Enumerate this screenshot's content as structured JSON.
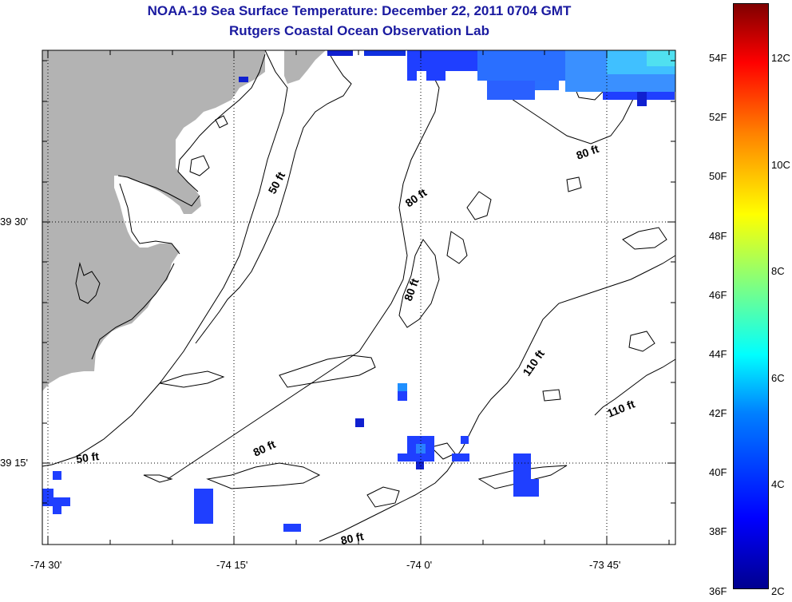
{
  "title": "NOAA-19 Sea Surface Temperature:  December 22, 2011 0704 GMT",
  "subtitle": "Rutgers Coastal Ocean Observation Lab",
  "colors": {
    "title": "#1a1aa0",
    "land": "#b3b3b3",
    "contour": "#000000",
    "sst_cold": "#1f3fff",
    "sst_cool": "#2aa0ff"
  },
  "x_ticks": [
    "-74 30'",
    "-74 15'",
    "-74 0'",
    "-73 45'"
  ],
  "y_ticks": [
    "39 30'",
    "39 15'"
  ],
  "contour_labels": [
    "50 ft",
    "80 ft",
    "80 ft",
    "80 ft",
    "80 ft",
    "110 ft",
    "110 ft",
    "50 ft",
    "80 ft"
  ],
  "colorbar": {
    "fahrenheit": [
      "54F",
      "52F",
      "50F",
      "48F",
      "46F",
      "44F",
      "42F",
      "40F",
      "38F",
      "36F"
    ],
    "celsius": [
      "12C",
      "10C",
      "8C",
      "6C",
      "4C",
      "2C"
    ]
  }
}
